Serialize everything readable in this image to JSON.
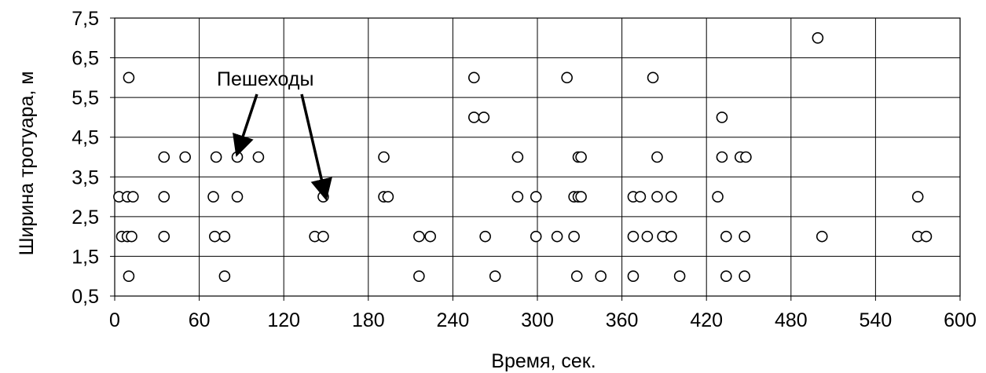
{
  "chart_data": {
    "type": "scatter",
    "title": "",
    "xlabel": "Время, сек.",
    "ylabel": "Ширина тротуара, м",
    "xlim": [
      0,
      600
    ],
    "ylim": [
      0.5,
      7.5
    ],
    "xticks": [
      "0",
      "60",
      "120",
      "180",
      "240",
      "300",
      "360",
      "420",
      "480",
      "540",
      "600"
    ],
    "yticks": [
      "0,5",
      "1,5",
      "2,5",
      "3,5",
      "4,5",
      "5,5",
      "6,5",
      "7,5"
    ],
    "grid": true,
    "legend": "none",
    "marker": "open-circle",
    "annotation": {
      "text": "Пешеходы",
      "arrows_point_to": [
        [
          88,
          4.2
        ],
        [
          149,
          3.1
        ]
      ]
    },
    "points": [
      [
        3,
        3
      ],
      [
        5,
        2
      ],
      [
        9,
        2
      ],
      [
        9,
        3
      ],
      [
        10,
        1
      ],
      [
        10,
        6
      ],
      [
        12,
        2
      ],
      [
        13,
        3
      ],
      [
        35,
        4
      ],
      [
        35,
        3
      ],
      [
        35,
        2
      ],
      [
        50,
        4
      ],
      [
        70,
        3
      ],
      [
        71,
        2
      ],
      [
        72,
        4
      ],
      [
        78,
        2
      ],
      [
        78,
        1
      ],
      [
        87,
        3
      ],
      [
        87,
        4
      ],
      [
        102,
        4
      ],
      [
        142,
        2
      ],
      [
        148,
        2
      ],
      [
        148,
        3
      ],
      [
        191,
        4
      ],
      [
        191,
        3
      ],
      [
        194,
        3
      ],
      [
        216,
        2
      ],
      [
        216,
        1
      ],
      [
        224,
        2
      ],
      [
        255,
        6
      ],
      [
        255,
        5
      ],
      [
        262,
        5
      ],
      [
        263,
        2
      ],
      [
        270,
        1
      ],
      [
        286,
        4
      ],
      [
        286,
        3
      ],
      [
        299,
        3
      ],
      [
        299,
        2
      ],
      [
        314,
        2
      ],
      [
        321,
        6
      ],
      [
        326,
        3
      ],
      [
        326,
        2
      ],
      [
        328,
        1
      ],
      [
        329,
        3
      ],
      [
        329,
        4
      ],
      [
        331,
        3
      ],
      [
        331,
        4
      ],
      [
        345,
        1
      ],
      [
        368,
        3
      ],
      [
        368,
        2
      ],
      [
        368,
        1
      ],
      [
        373,
        3
      ],
      [
        378,
        2
      ],
      [
        382,
        6
      ],
      [
        385,
        4
      ],
      [
        385,
        3
      ],
      [
        389,
        2
      ],
      [
        395,
        3
      ],
      [
        395,
        2
      ],
      [
        401,
        1
      ],
      [
        428,
        3
      ],
      [
        431,
        5
      ],
      [
        431,
        4
      ],
      [
        434,
        2
      ],
      [
        434,
        1
      ],
      [
        444,
        4
      ],
      [
        447,
        2
      ],
      [
        447,
        1
      ],
      [
        448,
        4
      ],
      [
        499,
        7
      ],
      [
        502,
        2
      ],
      [
        570,
        3
      ],
      [
        570,
        2
      ],
      [
        576,
        2
      ]
    ]
  }
}
